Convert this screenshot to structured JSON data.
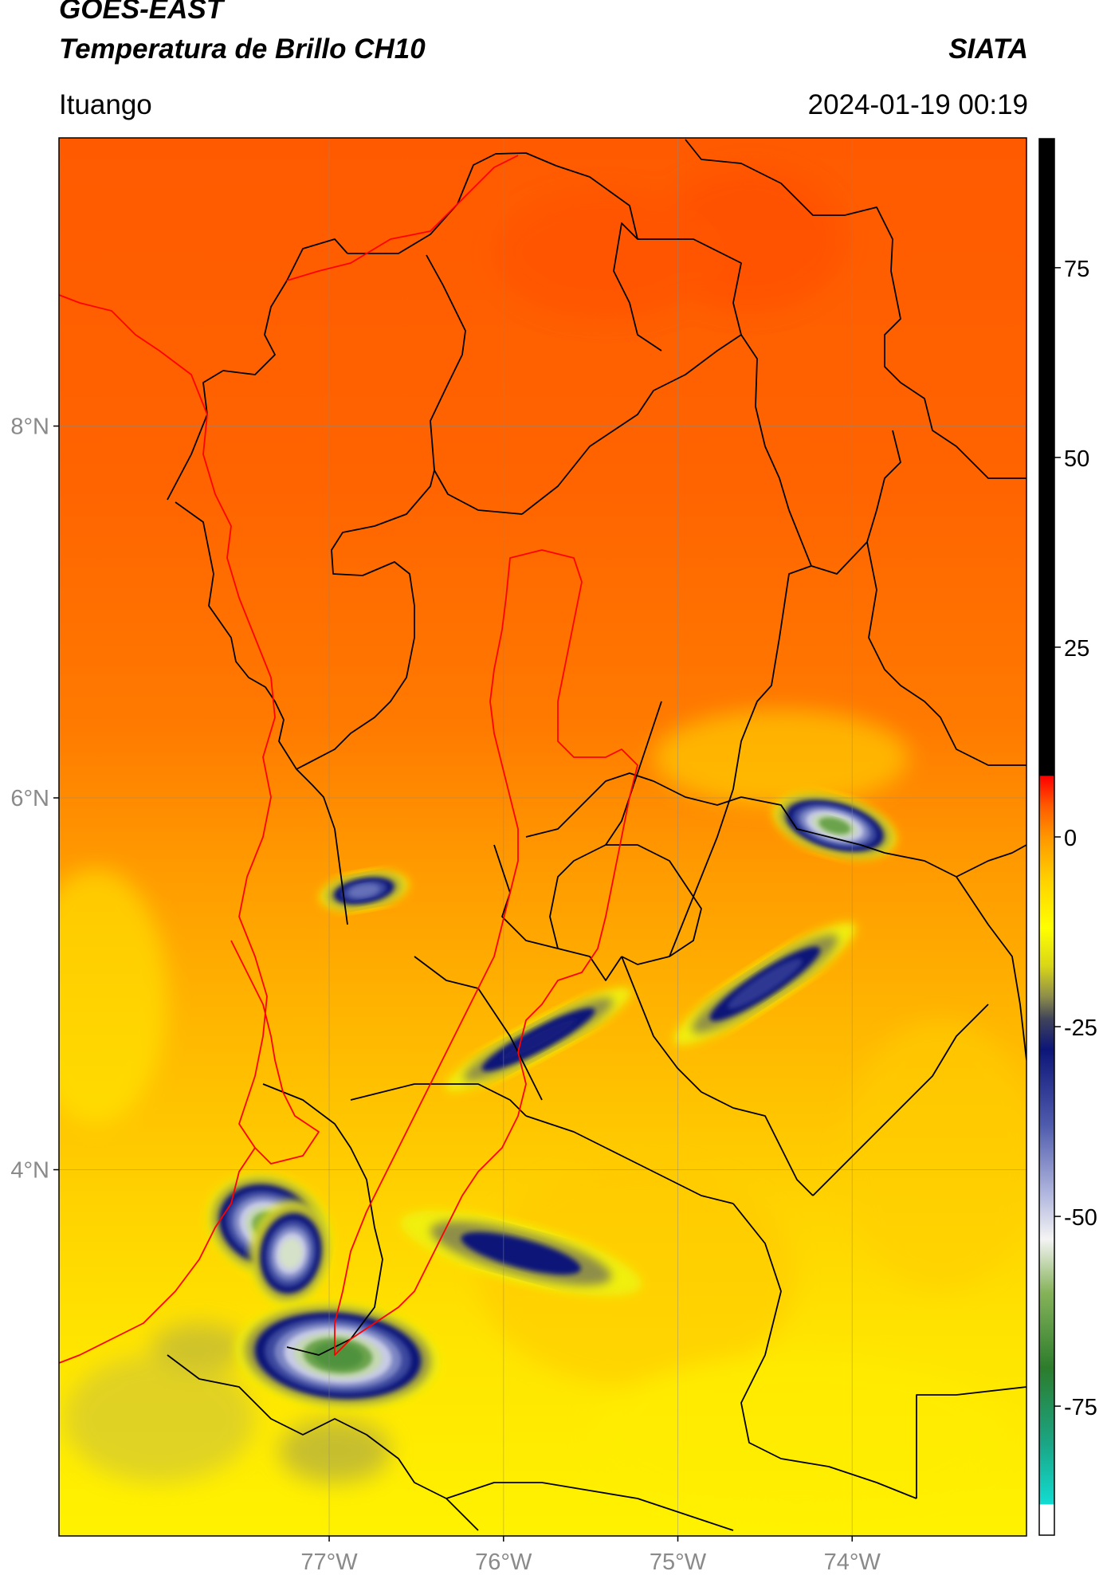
{
  "header": {
    "satellite": "GOES-EAST",
    "title": "Temperatura de Brillo CH10",
    "organization": "SIATA",
    "location": "Ituango",
    "datetime": "2024-01-19 00:19"
  },
  "map": {
    "lon_range": [
      -78.55,
      -73.0
    ],
    "lat_range": [
      2.03,
      9.55
    ],
    "lon_ticks": [
      -77,
      -76,
      -75,
      -74
    ],
    "lon_tick_labels": [
      "77°W",
      "76°W",
      "75°W",
      "74°W"
    ],
    "lat_ticks": [
      4,
      6,
      8
    ],
    "lat_tick_labels": [
      "4°N",
      "6°N",
      "8°N"
    ],
    "grid": true,
    "boundary_color": "#000000",
    "highlight_color": "#ff0000"
  },
  "colorbar": {
    "value_range": [
      -92,
      92
    ],
    "ticks": [
      75,
      50,
      25,
      0,
      -25,
      -50,
      -75
    ],
    "tick_labels": [
      "75",
      "50",
      "25",
      "0",
      "-25",
      "-50",
      "-75"
    ],
    "stops": [
      {
        "v": -92,
        "c": "#ffffff"
      },
      {
        "v": -88,
        "c": "#ffffff"
      },
      {
        "v": -87.9,
        "c": "#12dcd2"
      },
      {
        "v": -80,
        "c": "#1aa685"
      },
      {
        "v": -70,
        "c": "#2c7c2c"
      },
      {
        "v": -60,
        "c": "#86b35a"
      },
      {
        "v": -53,
        "c": "#f4f4f4"
      },
      {
        "v": -47,
        "c": "#b0b6de"
      },
      {
        "v": -38,
        "c": "#4f5cad"
      },
      {
        "v": -28,
        "c": "#0c1678"
      },
      {
        "v": -24,
        "c": "#40435a"
      },
      {
        "v": -21,
        "c": "#8e8e4a"
      },
      {
        "v": -17,
        "c": "#d9d617"
      },
      {
        "v": -12,
        "c": "#ffff00"
      },
      {
        "v": -6,
        "c": "#ffd400"
      },
      {
        "v": 0,
        "c": "#ff9600"
      },
      {
        "v": 4,
        "c": "#ff5c00"
      },
      {
        "v": 8,
        "c": "#ff0000"
      },
      {
        "v": 8.1,
        "c": "#000000"
      },
      {
        "v": 92,
        "c": "#000000"
      }
    ]
  },
  "cloud_features": [
    {
      "name": "cloud-buenaventura-north",
      "lon": -77.35,
      "lat": 3.7,
      "min_temp": -62
    },
    {
      "name": "cloud-buenaventura-south",
      "lon": -77.22,
      "lat": 3.55,
      "min_temp": -55
    },
    {
      "name": "cloud-tumaco-offshore",
      "lon": -76.95,
      "lat": 3.0,
      "min_temp": -66
    },
    {
      "name": "cloud-choco",
      "lon": -76.8,
      "lat": 5.5,
      "min_temp": -40
    },
    {
      "name": "cloud-boyaca",
      "lon": -74.1,
      "lat": 5.85,
      "min_temp": -63
    },
    {
      "name": "cloud-cundinamarca",
      "lon": -74.5,
      "lat": 5.0,
      "min_temp": -33
    },
    {
      "name": "cloud-caldas",
      "lon": -75.8,
      "lat": 4.7,
      "min_temp": -29
    },
    {
      "name": "cloud-valle",
      "lon": -75.9,
      "lat": 3.55,
      "min_temp": -28
    }
  ]
}
